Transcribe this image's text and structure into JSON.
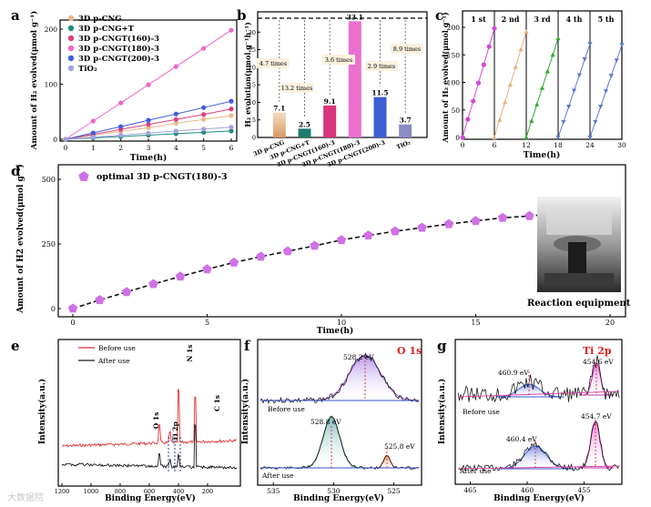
{
  "watermark": "大数据院",
  "chart_data": [
    {
      "panel": "a",
      "type": "line",
      "xlabel": "Time(h)",
      "ylabel": "Amount of H₂ evolved(μmol g⁻¹)",
      "xlim": [
        0,
        6
      ],
      "ylim": [
        0,
        200
      ],
      "xticks": [
        0,
        1,
        2,
        3,
        4,
        5,
        6
      ],
      "yticks": [
        0,
        100,
        200
      ],
      "x": [
        0,
        1,
        2,
        3,
        4,
        5,
        6
      ],
      "legend": "top-left",
      "series": [
        {
          "name": "3D p-CNG",
          "color": "#e8b98c",
          "values": [
            0,
            7,
            14,
            21,
            29,
            36,
            43
          ]
        },
        {
          "name": "3D p-CNG+T",
          "color": "#1e8a7c",
          "values": [
            0,
            2.5,
            5,
            7.5,
            10,
            12.5,
            15
          ]
        },
        {
          "name": "3D p-CNGT(160)-3",
          "color": "#e0407a",
          "values": [
            0,
            9,
            18,
            27,
            36,
            45,
            55
          ]
        },
        {
          "name": "3D p-CNGT(180)-3",
          "color": "#ee66c8",
          "values": [
            0,
            33,
            66,
            99,
            132,
            165,
            198
          ]
        },
        {
          "name": "3D p-CNGT(200)-3",
          "color": "#3f5fd9",
          "values": [
            0,
            11.5,
            23,
            34.5,
            46,
            57.5,
            69
          ]
        },
        {
          "name": "TiO₂",
          "color": "#a3a3e0",
          "values": [
            0,
            3.7,
            7.4,
            11,
            15,
            18.5,
            22
          ]
        }
      ]
    },
    {
      "panel": "b",
      "type": "bar",
      "ylabel": "H₂ evolution(μmol g⁻¹h⁻¹)",
      "ylim": [
        0,
        35
      ],
      "yticks": [
        0,
        5,
        10,
        15,
        20,
        25,
        30
      ],
      "categories": [
        "3D p-CNG",
        "3D p-CNG+T",
        "3D p-CNGT(160)-3",
        "3D p-CNGT(180)-3",
        "3D p-CNGT(200)-3",
        "TiO₂"
      ],
      "values": [
        7.1,
        2.5,
        9.1,
        33.1,
        11.5,
        3.7
      ],
      "value_labels": [
        "7.1",
        "2.5",
        "9.1",
        "33.1",
        "11.5",
        "3.7"
      ],
      "colors": [
        "#e7a873",
        "#1d7d6e",
        "#d8357a",
        "#ec6fd0",
        "#3d5fd6",
        "#8a8ac4"
      ],
      "annotations": [
        "4.7 times",
        "13.2 times",
        "3.6 times",
        "2.9 times",
        "8.9 times"
      ]
    },
    {
      "panel": "c",
      "type": "line",
      "xlabel": "Time(h)",
      "ylabel": "Amount of H₂ evolved(μmol g⁻¹)",
      "xlim": [
        0,
        30
      ],
      "ylim": [
        0,
        200
      ],
      "xticks": [
        0,
        6,
        12,
        18,
        24,
        30
      ],
      "yticks": [
        0,
        50,
        100,
        150,
        200
      ],
      "cycle_labels": [
        "1 st",
        "2 nd",
        "3 rd",
        "4 th",
        "5 th"
      ],
      "series": [
        {
          "name": "1 st",
          "color": "#d44ad8",
          "x": [
            0,
            1,
            2,
            3,
            4,
            5,
            6
          ],
          "values": [
            0,
            33,
            66,
            99,
            132,
            165,
            198
          ]
        },
        {
          "name": "2 nd",
          "color": "#e8b07a",
          "x": [
            6,
            7,
            8,
            9,
            10,
            11,
            12
          ],
          "values": [
            0,
            32,
            64,
            96,
            128,
            160,
            192
          ]
        },
        {
          "name": "3 rd",
          "color": "#2ea830",
          "x": [
            12,
            13,
            14,
            15,
            16,
            17,
            18
          ],
          "values": [
            0,
            30,
            60,
            90,
            120,
            150,
            180
          ]
        },
        {
          "name": "4 th",
          "color": "#5a7ad0",
          "x": [
            18,
            19,
            20,
            21,
            22,
            23,
            24
          ],
          "values": [
            0,
            28,
            56,
            85,
            113,
            142,
            170
          ]
        },
        {
          "name": "5 th",
          "color": "#5a7ad0",
          "x": [
            24,
            25,
            26,
            27,
            28,
            29,
            30
          ],
          "values": [
            0,
            28,
            56,
            84,
            112,
            140,
            168
          ]
        }
      ]
    },
    {
      "panel": "d",
      "type": "line",
      "xlabel": "Time(h)",
      "ylabel": "Amount of H2 evolved(μmol g⁻¹)",
      "xlim": [
        0,
        20
      ],
      "ylim": [
        0,
        500
      ],
      "xticks": [
        0,
        5,
        10,
        15,
        20
      ],
      "yticks": [
        0,
        250,
        500
      ],
      "legend": "top-left",
      "series": [
        {
          "name": "optimal 3D p-CNGT(180)-3",
          "color": "#cf71e6",
          "x": [
            0,
            1,
            2,
            3,
            4,
            5,
            6,
            7,
            8,
            9,
            10,
            11,
            12,
            13,
            14,
            15,
            16,
            17,
            18,
            19,
            20
          ],
          "values": [
            0,
            33,
            64,
            95,
            124,
            152,
            178,
            201,
            222,
            243,
            265,
            283,
            299,
            313,
            327,
            339,
            351,
            358,
            367,
            375,
            383
          ]
        }
      ],
      "image_caption": "Reaction equipment"
    },
    {
      "panel": "e",
      "type": "line",
      "xlabel": "Binding Energy(eV)",
      "ylabel": "Intensity(a.u.)",
      "xlim": [
        1200,
        0
      ],
      "xticks": [
        1200,
        1000,
        800,
        600,
        400,
        200
      ],
      "series": [
        {
          "name": "Before use",
          "color": "#e03030"
        },
        {
          "name": "After use",
          "color": "#1a1a1a"
        }
      ],
      "peak_labels": [
        "O 1s",
        "Ti 2p",
        "N 1s",
        "C 1s"
      ]
    },
    {
      "panel": "f",
      "type": "line",
      "title": "O 1s",
      "xlabel": "Binding Energy(eV)",
      "ylabel": "Intensity(a.u.)",
      "xlim": [
        536,
        523
      ],
      "xticks": [
        535,
        530,
        525
      ],
      "peaks": [
        {
          "label": "528.2 eV",
          "trace": "Before use"
        },
        {
          "label": "528.8 eV",
          "trace": "After use"
        },
        {
          "label": "525.8 eV",
          "trace": "After use"
        }
      ],
      "series_labels": [
        "Before use",
        "After use"
      ]
    },
    {
      "panel": "g",
      "type": "line",
      "title": "Ti 2p",
      "xlabel": "Binding Energy(eV)",
      "ylabel": "Intensity(a.u.)",
      "xlim": [
        466,
        452
      ],
      "xticks": [
        465,
        460,
        455
      ],
      "peaks": [
        {
          "label": "460.9 eV",
          "trace": "Before use"
        },
        {
          "label": "454.6 eV",
          "trace": "Before use"
        },
        {
          "label": "460.4 eV",
          "trace": "After use"
        },
        {
          "label": "454.7 eV",
          "trace": "After use"
        }
      ],
      "series_labels": [
        "Before use",
        "After use"
      ]
    }
  ]
}
